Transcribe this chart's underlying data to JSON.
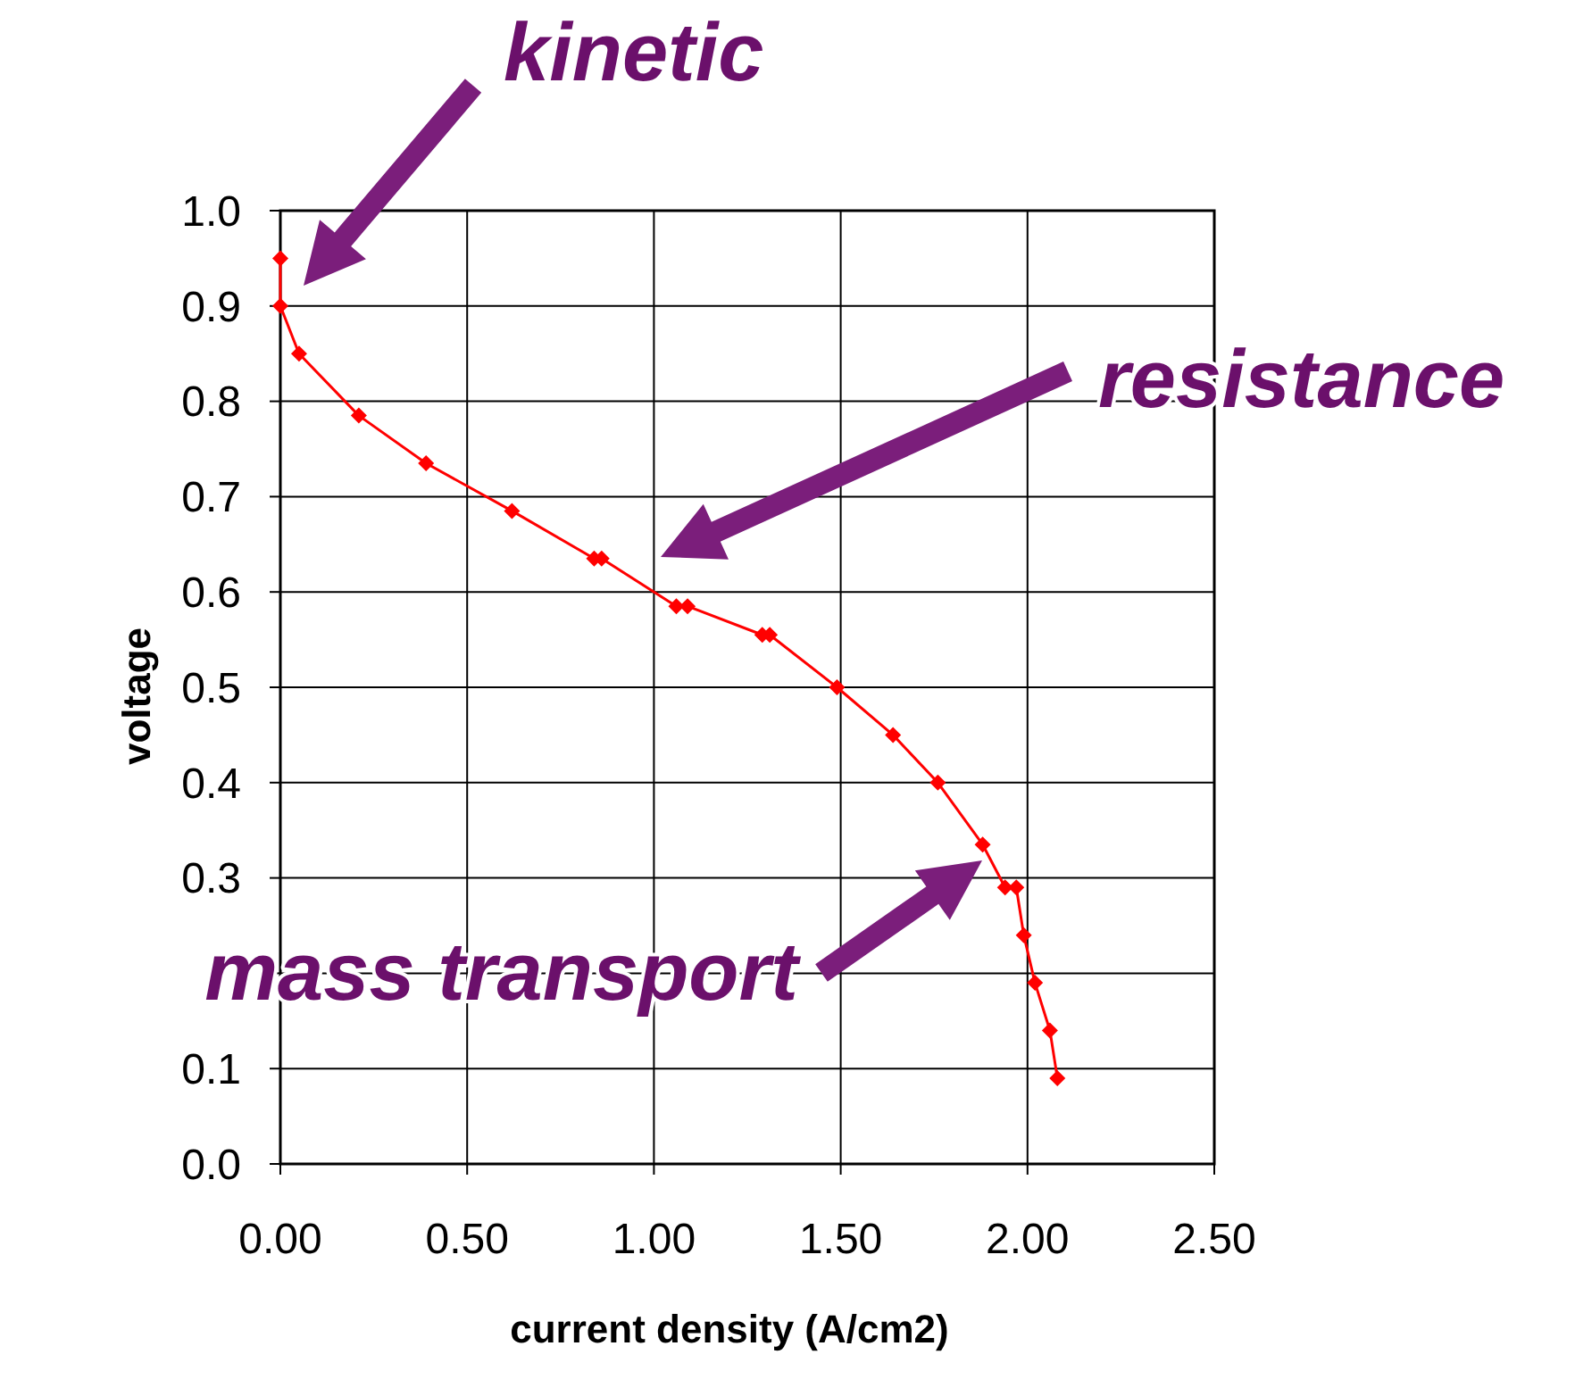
{
  "chart_data": {
    "type": "line",
    "xlabel": "current density (A/cm2)",
    "ylabel": "voltage",
    "series": [
      {
        "color": "#ff0000",
        "x": [
          0,
          0,
          0.05,
          0.21,
          0.39,
          0.62,
          0.84,
          0.86,
          1.06,
          1.09,
          1.29,
          1.31,
          1.49,
          1.64,
          1.76,
          1.88,
          1.94,
          1.97,
          1.99,
          2.02,
          2.06,
          2.08
        ],
        "values": [
          0.95,
          0.9,
          0.85,
          0.785,
          0.735,
          0.685,
          0.635,
          0.635,
          0.585,
          0.585,
          0.555,
          0.555,
          0.5,
          0.45,
          0.4,
          0.335,
          0.29,
          0.29,
          0.24,
          0.19,
          0.14,
          0.09
        ]
      }
    ],
    "xlim": [
      0,
      2.5
    ],
    "ylim": [
      0,
      1
    ],
    "xticks": [
      {
        "value": 0,
        "label": "0.00"
      },
      {
        "value": 0.5,
        "label": "0.50"
      },
      {
        "value": 1,
        "label": "1.00"
      },
      {
        "value": 1.5,
        "label": "1.50"
      },
      {
        "value": 2,
        "label": "2.00"
      },
      {
        "value": 2.5,
        "label": "2.50"
      }
    ],
    "yticks": [
      {
        "value": 0,
        "label": "0.0"
      },
      {
        "value": 0.1,
        "label": "0.1"
      },
      {
        "value": 0.2,
        "label": null
      },
      {
        "value": 0.3,
        "label": "0.3"
      },
      {
        "value": 0.4,
        "label": "0.4"
      },
      {
        "value": 0.5,
        "label": "0.5"
      },
      {
        "value": 0.6,
        "label": "0.6"
      },
      {
        "value": 0.7,
        "label": "0.7"
      },
      {
        "value": 0.8,
        "label": "0.8"
      },
      {
        "value": 0.9,
        "label": "0.9"
      },
      {
        "value": 1,
        "label": "1.0"
      }
    ],
    "grid": true,
    "marker": "diamond",
    "line_style": "solid",
    "annotations": [
      "kinetic",
      "resistance",
      "mass transport"
    ]
  }
}
